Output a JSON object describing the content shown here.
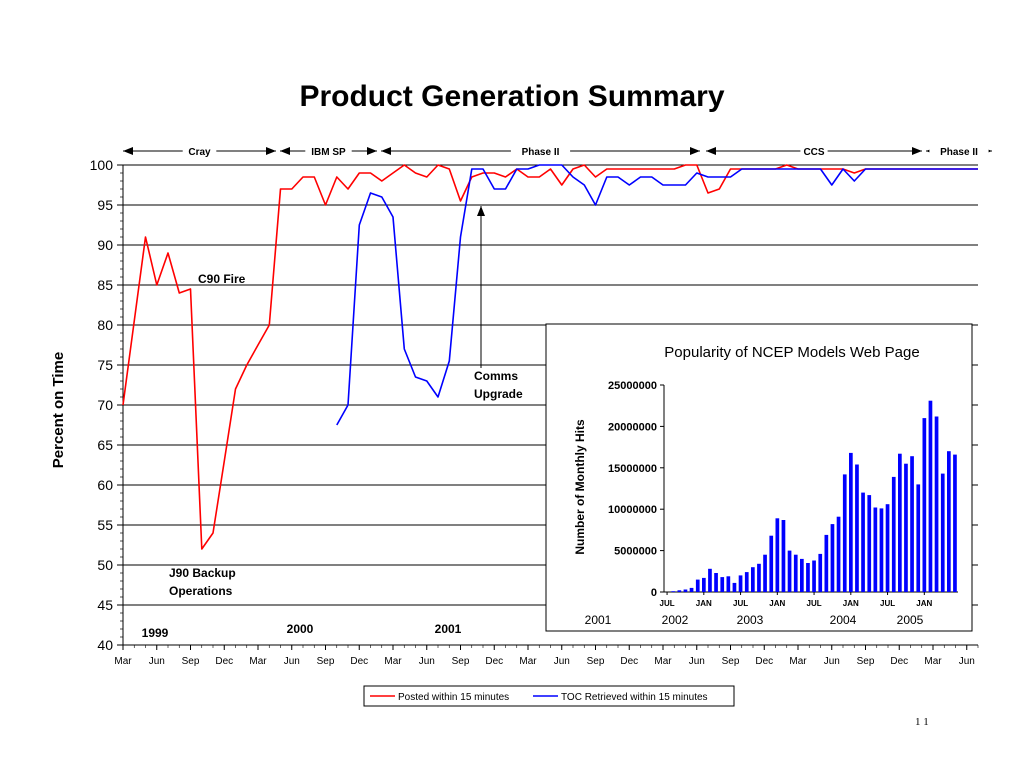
{
  "title": "Product Generation Summary",
  "page_number": "1 1",
  "chart_data": [
    {
      "type": "line",
      "ylabel": "Percent on Time",
      "ylim": [
        40,
        100
      ],
      "yticks": [
        40,
        45,
        50,
        55,
        60,
        65,
        70,
        75,
        80,
        85,
        90,
        95,
        100
      ],
      "grid": true,
      "xticks": [
        "Mar",
        "Jun",
        "Sep",
        "Dec",
        "Mar",
        "Jun",
        "Sep",
        "Dec",
        "Mar",
        "Jun",
        "Sep",
        "Dec",
        "Mar",
        "Jun",
        "Sep",
        "Dec",
        "Mar",
        "Jun",
        "Sep",
        "Dec",
        "Mar",
        "Jun",
        "Sep",
        "Dec",
        "Mar",
        "Jun"
      ],
      "year_labels": [
        "1999",
        "2000",
        "2001"
      ],
      "eras": [
        {
          "label": "Cray",
          "start": 0,
          "end": 13
        },
        {
          "label": "IBM SP",
          "start": 13,
          "end": 22
        },
        {
          "label": "Phase II",
          "start": 22,
          "end": 58
        },
        {
          "label": "CCS",
          "start": 58,
          "end": 72
        },
        {
          "label": "Phase II",
          "start": 72,
          "end": 76
        }
      ],
      "annotations": [
        "C90 Fire",
        "J90 Backup Operations",
        "Comms Upgrade"
      ],
      "legend_position": "bottom",
      "series": [
        {
          "name": "Posted within 15 minutes",
          "color": "#ff0000",
          "x": [
            0,
            2,
            3,
            4,
            5,
            6,
            7,
            8,
            9,
            10,
            11,
            12,
            13,
            14,
            15,
            16,
            17,
            18,
            19,
            20,
            21,
            22,
            23,
            24,
            25,
            26,
            27,
            28,
            29,
            30,
            31,
            32,
            33,
            34,
            35,
            36,
            37,
            38,
            39,
            40,
            41,
            42,
            43,
            44,
            45,
            46,
            47,
            48,
            49,
            50,
            51,
            52,
            53,
            54,
            55,
            56,
            57,
            58,
            59,
            60,
            61,
            62,
            63,
            64,
            65,
            66,
            67,
            68,
            69,
            70,
            71,
            72,
            73,
            74,
            75,
            76
          ],
          "y": [
            70,
            91,
            85,
            89,
            84,
            84.5,
            52,
            54,
            63,
            72,
            75,
            77.5,
            80,
            97,
            97,
            98.5,
            98.5,
            95,
            98.5,
            97,
            99,
            99,
            98,
            99,
            100,
            99,
            98.5,
            100,
            99.5,
            95.5,
            98.5,
            99,
            99,
            98.5,
            99.5,
            98.5,
            98.5,
            99.5,
            97.5,
            99.5,
            100,
            98.5,
            99.5,
            99.5,
            99.5,
            99.5,
            99.5,
            99.5,
            99.5,
            100,
            100,
            96.5,
            97,
            99.5,
            99.5,
            99.5,
            99.5,
            99.5,
            100,
            99.5,
            99.5,
            99.5,
            99.5,
            99.5,
            99,
            99.5,
            99.5,
            99.5,
            99.5,
            99.5,
            99.5,
            99.5,
            99.5,
            99.5,
            99.5,
            99.5
          ]
        },
        {
          "name": "TOC Retrieved within 15 minutes",
          "color": "#0000ff",
          "x": [
            19,
            20,
            21,
            22,
            23,
            24,
            25,
            26,
            27,
            28,
            29,
            30,
            31,
            32,
            33,
            34,
            35,
            36,
            37,
            38,
            39,
            40,
            41,
            42,
            43,
            44,
            45,
            46,
            47,
            48,
            49,
            50,
            51,
            52,
            53,
            54,
            55,
            56,
            57,
            58,
            59,
            60,
            61,
            62,
            63,
            64,
            65,
            66,
            67,
            68,
            69,
            70,
            71,
            72,
            73,
            74,
            75,
            76
          ],
          "y": [
            67.5,
            70,
            92.5,
            96.5,
            96,
            93.5,
            77,
            73.5,
            73,
            71,
            75.5,
            91,
            99.5,
            99.5,
            97,
            97,
            99.5,
            99.5,
            100,
            100,
            100,
            98.5,
            97.5,
            95,
            98.5,
            98.5,
            97.5,
            98.5,
            98.5,
            97.5,
            97.5,
            97.5,
            99,
            98.5,
            98.5,
            98.5,
            99.5,
            99.5,
            99.5,
            99.5,
            99.5,
            99.5,
            99.5,
            99.5,
            97.5,
            99.5,
            98,
            99.5,
            99.5,
            99.5,
            99.5,
            99.5,
            99.5,
            99.5,
            99.5,
            99.5,
            99.5,
            99.5
          ]
        }
      ]
    },
    {
      "type": "bar",
      "title": "Popularity of NCEP Models Web Page",
      "ylabel": "Number of Monthly Hits",
      "ylim": [
        0,
        25000000
      ],
      "yticks": [
        "0",
        "5000000",
        "10000000",
        "15000000",
        "20000000",
        "25000000"
      ],
      "xticks": [
        "JUL",
        "JAN",
        "JUL",
        "JAN",
        "JUL",
        "JAN",
        "JUL",
        "JAN"
      ],
      "year_labels": [
        "2001",
        "2002",
        "2003",
        "2004",
        "2005"
      ],
      "color": "#0000ff",
      "values": [
        0,
        100000,
        200000,
        300000,
        500000,
        1500000,
        1700000,
        2800000,
        2300000,
        1800000,
        1900000,
        1100000,
        2000000,
        2400000,
        3000000,
        3400000,
        4500000,
        6800000,
        8900000,
        8700000,
        5000000,
        4500000,
        4000000,
        3500000,
        3800000,
        4600000,
        6900000,
        8200000,
        9100000,
        14200000,
        16800000,
        15400000,
        12000000,
        11700000,
        10200000,
        10100000,
        10600000,
        13900000,
        16700000,
        15500000,
        16400000,
        13000000,
        21000000,
        23100000,
        21200000,
        14300000,
        17000000,
        16600000
      ]
    }
  ]
}
